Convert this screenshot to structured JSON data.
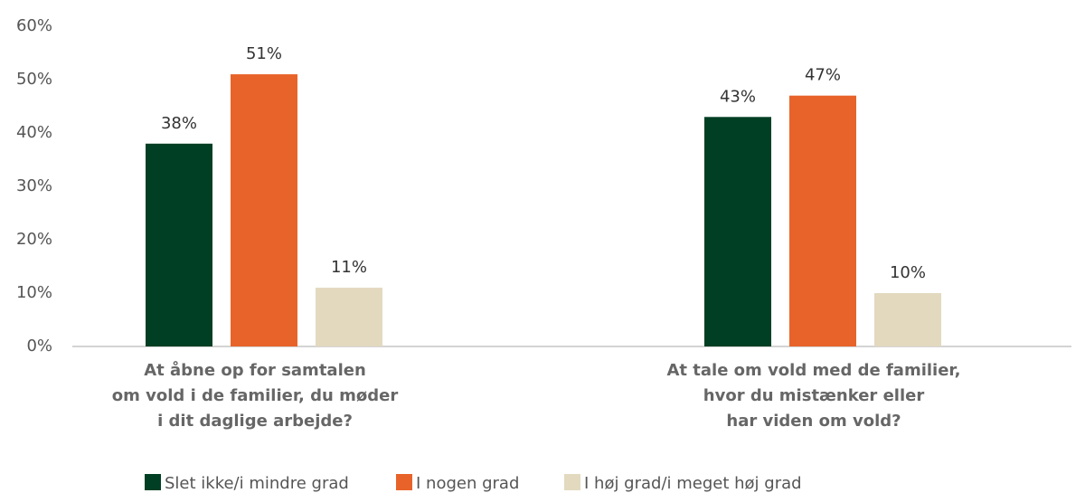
{
  "chart_data": {
    "type": "bar",
    "categories": [
      "At åbne op for samtalen\nom vold i de familier, du møder\ni dit daglige arbejde?",
      "At tale om vold med de familier,\nhvor du mistænker eller\nhar viden om vold?"
    ],
    "series": [
      {
        "name": "Slet ikke/i mindre grad",
        "color": "#003f23",
        "values": [
          38,
          43
        ],
        "value_labels": [
          "38%",
          "43%"
        ]
      },
      {
        "name": "I nogen grad",
        "color": "#e8632a",
        "values": [
          51,
          47
        ],
        "value_labels": [
          "51%",
          "47%"
        ]
      },
      {
        "name": "I høj grad/i meget høj grad",
        "color": "#e3d9bf",
        "values": [
          11,
          10
        ],
        "value_labels": [
          "11%",
          "10%"
        ]
      }
    ],
    "ylim": [
      0,
      60
    ],
    "yticks": [
      {
        "value": 0,
        "label": "0%"
      },
      {
        "value": 10,
        "label": "10%"
      },
      {
        "value": 20,
        "label": "20%"
      },
      {
        "value": 30,
        "label": "30%"
      },
      {
        "value": 40,
        "label": "40%"
      },
      {
        "value": 50,
        "label": "50%"
      },
      {
        "value": 60,
        "label": "60%"
      }
    ],
    "grid": false,
    "legend": "bottom"
  }
}
